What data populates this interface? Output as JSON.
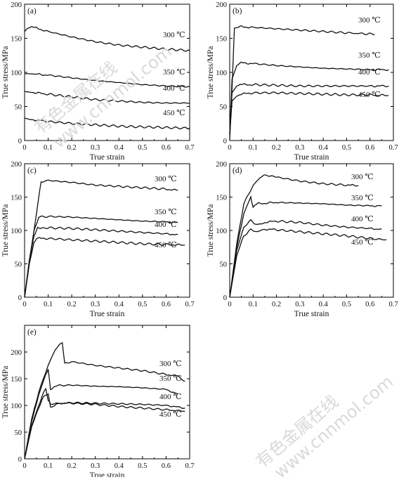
{
  "watermarks": [
    "有色金属在线",
    "www.cnnmol.com"
  ],
  "chart_data": [
    {
      "panel": "(a)",
      "type": "line",
      "xlabel": "True strain",
      "ylabel": "True stress/MPa",
      "xlim": [
        0,
        0.7
      ],
      "ylim": [
        0,
        200
      ],
      "xticks": [
        "0",
        "0.1",
        "0.2",
        "0.3",
        "0.4",
        "0.5",
        "0.6",
        "0.7"
      ],
      "yticks": [
        "0",
        "50",
        "100",
        "150",
        "200"
      ],
      "series": [
        {
          "name": "300 ℃",
          "x": [
            0,
            0.01,
            0.03,
            0.05,
            0.1,
            0.2,
            0.3,
            0.4,
            0.5,
            0.6,
            0.7
          ],
          "y": [
            160,
            164,
            167,
            165,
            160,
            152,
            145,
            140,
            137,
            134,
            132
          ]
        },
        {
          "name": "350 ℃",
          "x": [
            0,
            0.02,
            0.1,
            0.2,
            0.3,
            0.4,
            0.5,
            0.6,
            0.7
          ],
          "y": [
            98,
            98,
            96,
            92,
            88,
            85,
            82,
            80,
            79
          ]
        },
        {
          "name": "400 ℃",
          "x": [
            0,
            0.02,
            0.1,
            0.2,
            0.3,
            0.4,
            0.5,
            0.6,
            0.7
          ],
          "y": [
            72,
            71,
            68,
            64,
            60,
            58,
            56,
            55,
            55
          ]
        },
        {
          "name": "450 ℃",
          "x": [
            0,
            0.02,
            0.1,
            0.2,
            0.3,
            0.4,
            0.5,
            0.6,
            0.7
          ],
          "y": [
            33,
            31,
            28,
            25,
            23,
            21,
            20,
            19,
            18
          ]
        }
      ]
    },
    {
      "panel": "(b)",
      "type": "line",
      "xlabel": "True strain",
      "ylabel": "True stress/MPa",
      "xlim": [
        0,
        0.7
      ],
      "ylim": [
        0,
        200
      ],
      "xticks": [
        "0",
        "0.1",
        "0.2",
        "0.3",
        "0.4",
        "0.5",
        "0.6",
        "0.7"
      ],
      "yticks": [
        "0",
        "50",
        "100",
        "150",
        "200"
      ],
      "series": [
        {
          "name": "300 ℃",
          "x": [
            0,
            0.008,
            0.015,
            0.02,
            0.05,
            0.1,
            0.2,
            0.3,
            0.4,
            0.5,
            0.62
          ],
          "y": [
            0,
            60,
            120,
            165,
            167,
            166,
            164,
            162,
            160,
            158,
            156
          ]
        },
        {
          "name": "350 ℃",
          "x": [
            0,
            0.01,
            0.03,
            0.05,
            0.1,
            0.2,
            0.3,
            0.4,
            0.5,
            0.6,
            0.68
          ],
          "y": [
            10,
            90,
            110,
            114,
            113,
            110,
            108,
            106,
            105,
            104,
            104
          ]
        },
        {
          "name": "400 ℃",
          "x": [
            0,
            0.01,
            0.03,
            0.05,
            0.1,
            0.2,
            0.3,
            0.4,
            0.5,
            0.6,
            0.68
          ],
          "y": [
            10,
            70,
            80,
            82,
            82,
            81,
            80,
            80,
            80,
            80,
            80
          ]
        },
        {
          "name": "450 ℃",
          "x": [
            0,
            0.01,
            0.03,
            0.05,
            0.1,
            0.2,
            0.3,
            0.4,
            0.5,
            0.6,
            0.68
          ],
          "y": [
            10,
            58,
            65,
            68,
            70,
            70,
            69,
            68,
            67,
            67,
            66
          ]
        }
      ]
    },
    {
      "panel": "(c)",
      "type": "line",
      "xlabel": "True strain",
      "ylabel": "True stress/MPa",
      "xlim": [
        0,
        0.7
      ],
      "ylim": [
        0,
        200
      ],
      "xticks": [
        "0",
        "0.1",
        "0.2",
        "0.3",
        "0.4",
        "0.5",
        "0.6",
        "0.7"
      ],
      "yticks": [
        "0",
        "50",
        "100",
        "150",
        "200"
      ],
      "series": [
        {
          "name": "300 ℃",
          "x": [
            0,
            0.02,
            0.04,
            0.06,
            0.07,
            0.1,
            0.2,
            0.3,
            0.4,
            0.5,
            0.6,
            0.65
          ],
          "y": [
            0,
            50,
            100,
            150,
            173,
            175,
            172,
            168,
            166,
            164,
            162,
            160
          ]
        },
        {
          "name": "350 ℃",
          "x": [
            0,
            0.02,
            0.04,
            0.06,
            0.1,
            0.2,
            0.3,
            0.4,
            0.5,
            0.6,
            0.65
          ],
          "y": [
            0,
            55,
            100,
            120,
            121,
            120,
            118,
            116,
            114,
            113,
            112
          ]
        },
        {
          "name": "400 ℃",
          "x": [
            0,
            0.02,
            0.04,
            0.055,
            0.1,
            0.2,
            0.3,
            0.4,
            0.5,
            0.6,
            0.65
          ],
          "y": [
            0,
            55,
            92,
            104,
            104,
            103,
            101,
            99,
            97,
            95,
            94
          ]
        },
        {
          "name": "450 ℃",
          "x": [
            0,
            0.02,
            0.04,
            0.05,
            0.1,
            0.2,
            0.3,
            0.4,
            0.5,
            0.6,
            0.68
          ],
          "y": [
            0,
            50,
            82,
            88,
            88,
            86,
            84,
            82,
            80,
            79,
            78
          ]
        }
      ]
    },
    {
      "panel": "(d)",
      "type": "line",
      "xlabel": "True strain",
      "ylabel": "True stress/MPa",
      "xlim": [
        0,
        0.7
      ],
      "ylim": [
        0,
        200
      ],
      "xticks": [
        "0",
        "0.1",
        "0.2",
        "0.3",
        "0.4",
        "0.5",
        "0.6",
        "0.7"
      ],
      "yticks": [
        "0",
        "50",
        "100",
        "150",
        "200"
      ],
      "series": [
        {
          "name": "300 ℃",
          "x": [
            0,
            0.03,
            0.06,
            0.1,
            0.13,
            0.16,
            0.2,
            0.3,
            0.4,
            0.5,
            0.55
          ],
          "y": [
            0,
            80,
            140,
            167,
            180,
            183,
            180,
            174,
            170,
            168,
            167
          ]
        },
        {
          "name": "350 ℃",
          "x": [
            0,
            0.03,
            0.06,
            0.09,
            0.1,
            0.12,
            0.2,
            0.3,
            0.4,
            0.5,
            0.6,
            0.65
          ],
          "y": [
            0,
            75,
            125,
            150,
            135,
            140,
            142,
            141,
            140,
            138,
            137,
            137
          ]
        },
        {
          "name": "400 ℃",
          "x": [
            0,
            0.03,
            0.06,
            0.09,
            0.12,
            0.15,
            0.2,
            0.3,
            0.4,
            0.5,
            0.6,
            0.65
          ],
          "y": [
            0,
            70,
            105,
            115,
            108,
            112,
            114,
            112,
            108,
            105,
            103,
            102
          ]
        },
        {
          "name": "450 ℃",
          "x": [
            0,
            0.03,
            0.06,
            0.09,
            0.12,
            0.15,
            0.2,
            0.3,
            0.4,
            0.5,
            0.6,
            0.67
          ],
          "y": [
            0,
            62,
            92,
            101,
            98,
            102,
            101,
            98,
            95,
            92,
            88,
            86
          ]
        }
      ]
    },
    {
      "panel": "(e)",
      "type": "line",
      "xlabel": "True strain",
      "ylabel": "True stress/MPa",
      "xlim": [
        0,
        0.7
      ],
      "ylim": [
        0,
        250
      ],
      "xticks": [
        "0",
        "0.1",
        "0.2",
        "0.3",
        "0.4",
        "0.5",
        "0.6",
        "0.7"
      ],
      "yticks": [
        "0",
        "50",
        "100",
        "150",
        "200"
      ],
      "series": [
        {
          "name": "300 ℃",
          "x": [
            0,
            0.03,
            0.06,
            0.1,
            0.13,
            0.16,
            0.17,
            0.2,
            0.3,
            0.4,
            0.5,
            0.6,
            0.65,
            0.68
          ],
          "y": [
            0,
            75,
            125,
            175,
            205,
            218,
            178,
            182,
            175,
            170,
            165,
            158,
            155,
            145
          ]
        },
        {
          "name": "350 ℃",
          "x": [
            0,
            0.03,
            0.06,
            0.09,
            0.1,
            0.11,
            0.13,
            0.2,
            0.3,
            0.4,
            0.5,
            0.6,
            0.65
          ],
          "y": [
            0,
            70,
            120,
            158,
            168,
            130,
            137,
            138,
            136,
            135,
            133,
            130,
            121
          ]
        },
        {
          "name": "400 ℃",
          "x": [
            0,
            0.03,
            0.06,
            0.08,
            0.09,
            0.1,
            0.11,
            0.2,
            0.3,
            0.4,
            0.5,
            0.6,
            0.68
          ],
          "y": [
            0,
            62,
            100,
            125,
            130,
            110,
            103,
            105,
            104,
            103,
            102,
            100,
            95
          ]
        },
        {
          "name": "450 ℃",
          "x": [
            0,
            0.03,
            0.06,
            0.08,
            0.1,
            0.11,
            0.15,
            0.2,
            0.3,
            0.4,
            0.5,
            0.6,
            0.68
          ],
          "y": [
            0,
            60,
            95,
            118,
            122,
            97,
            104,
            104,
            102,
            98,
            95,
            92,
            89
          ]
        }
      ]
    }
  ]
}
